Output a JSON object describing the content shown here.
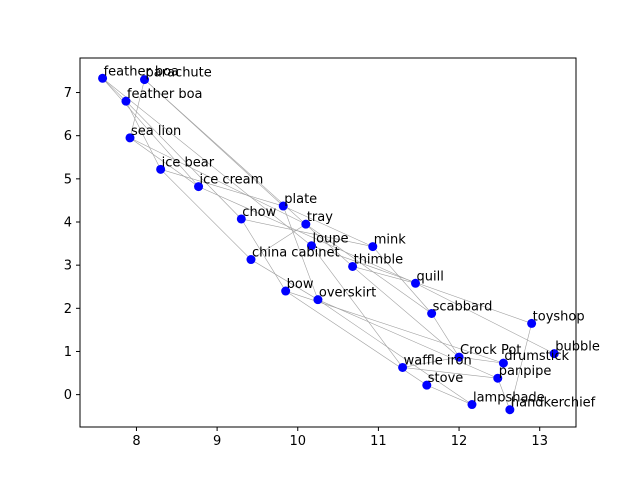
{
  "chart_data": {
    "type": "scatter",
    "title": "",
    "xlabel": "",
    "ylabel": "",
    "xlim": [
      7.3,
      13.45
    ],
    "ylim": [
      -0.75,
      7.8
    ],
    "x_ticks": [
      8,
      9,
      10,
      11,
      12,
      13
    ],
    "y_ticks": [
      0,
      1,
      2,
      3,
      4,
      5,
      6,
      7
    ],
    "grid": false,
    "legend": "none",
    "point_color": "#0000ff",
    "edge_color": "#a0a0a0",
    "points": [
      {
        "label": "feather boa",
        "x": 7.58,
        "y": 7.33
      },
      {
        "label": "parachute",
        "x": 8.1,
        "y": 7.3
      },
      {
        "label": "feather boa",
        "x": 7.87,
        "y": 6.8
      },
      {
        "label": "sea lion",
        "x": 7.92,
        "y": 5.95
      },
      {
        "label": "ice bear",
        "x": 8.3,
        "y": 5.22
      },
      {
        "label": "ice cream",
        "x": 8.77,
        "y": 4.82
      },
      {
        "label": "plate",
        "x": 9.82,
        "y": 4.37
      },
      {
        "label": "chow",
        "x": 9.3,
        "y": 4.07
      },
      {
        "label": "tray",
        "x": 10.1,
        "y": 3.95
      },
      {
        "label": "loupe",
        "x": 10.17,
        "y": 3.45
      },
      {
        "label": "mink",
        "x": 10.93,
        "y": 3.43
      },
      {
        "label": "china cabinet",
        "x": 9.42,
        "y": 3.13
      },
      {
        "label": "thimble",
        "x": 10.68,
        "y": 2.97
      },
      {
        "label": "quill",
        "x": 11.46,
        "y": 2.58
      },
      {
        "label": "bow",
        "x": 9.85,
        "y": 2.4
      },
      {
        "label": "overskirt",
        "x": 10.25,
        "y": 2.2
      },
      {
        "label": "scabbard",
        "x": 11.66,
        "y": 1.88
      },
      {
        "label": "toyshop",
        "x": 12.9,
        "y": 1.65
      },
      {
        "label": "bubble",
        "x": 13.18,
        "y": 0.95
      },
      {
        "label": "Crock Pot",
        "x": 12.0,
        "y": 0.87
      },
      {
        "label": "drumstick",
        "x": 12.55,
        "y": 0.73
      },
      {
        "label": "waffle iron",
        "x": 11.3,
        "y": 0.63
      },
      {
        "label": "panpipe",
        "x": 12.48,
        "y": 0.38
      },
      {
        "label": "stove",
        "x": 11.6,
        "y": 0.22
      },
      {
        "label": "lampshade",
        "x": 12.16,
        "y": -0.23
      },
      {
        "label": "handkerchief",
        "x": 12.63,
        "y": -0.35
      }
    ],
    "edges": [
      [
        0,
        2
      ],
      [
        0,
        5
      ],
      [
        0,
        9
      ],
      [
        1,
        3
      ],
      [
        1,
        6
      ],
      [
        1,
        12
      ],
      [
        2,
        4
      ],
      [
        2,
        7
      ],
      [
        3,
        5
      ],
      [
        3,
        8
      ],
      [
        4,
        11
      ],
      [
        5,
        13
      ],
      [
        6,
        10
      ],
      [
        6,
        15
      ],
      [
        7,
        14
      ],
      [
        7,
        10
      ],
      [
        8,
        16
      ],
      [
        8,
        11
      ],
      [
        9,
        21
      ],
      [
        9,
        17
      ],
      [
        11,
        15
      ],
      [
        12,
        13
      ],
      [
        12,
        19
      ],
      [
        13,
        18
      ],
      [
        14,
        20
      ],
      [
        14,
        23
      ],
      [
        15,
        24
      ],
      [
        15,
        22
      ],
      [
        16,
        19
      ],
      [
        17,
        25
      ],
      [
        19,
        21
      ],
      [
        21,
        22
      ],
      [
        19,
        20
      ],
      [
        22,
        25
      ],
      [
        23,
        24
      ],
      [
        10,
        16
      ],
      [
        4,
        6
      ]
    ]
  }
}
